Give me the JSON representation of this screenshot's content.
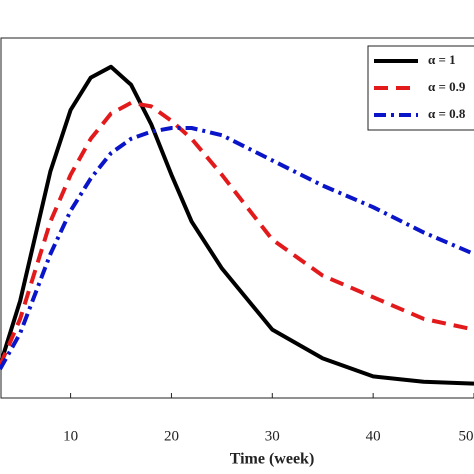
{
  "chart_data": {
    "type": "line",
    "xlabel": "Time (week)",
    "x": [
      3,
      5,
      8,
      10,
      12,
      14,
      16,
      18,
      20,
      22,
      25,
      30,
      35,
      40,
      45,
      50
    ],
    "series": [
      {
        "name": "α = 1",
        "color": "#000000",
        "dash": "solid",
        "values": [
          0.09,
          0.27,
          0.63,
          0.8,
          0.89,
          0.92,
          0.87,
          0.76,
          0.62,
          0.49,
          0.36,
          0.19,
          0.11,
          0.06,
          0.045,
          0.04
        ]
      },
      {
        "name": "α = 0.9",
        "color": "#e31a1c",
        "dash": "dashed",
        "values": [
          0.09,
          0.22,
          0.49,
          0.62,
          0.72,
          0.79,
          0.82,
          0.81,
          0.77,
          0.72,
          0.62,
          0.44,
          0.34,
          0.28,
          0.22,
          0.19
        ]
      },
      {
        "name": "α = 0.8",
        "color": "#0a14c8",
        "dash": "dashdot",
        "values": [
          0.08,
          0.18,
          0.4,
          0.52,
          0.61,
          0.68,
          0.72,
          0.74,
          0.75,
          0.75,
          0.73,
          0.66,
          0.59,
          0.53,
          0.46,
          0.4
        ]
      }
    ],
    "xlim": [
      3,
      50
    ],
    "xticks": [
      10,
      20,
      30,
      40,
      50
    ],
    "ylim": [
      0,
      1
    ],
    "legend": "upper right"
  }
}
